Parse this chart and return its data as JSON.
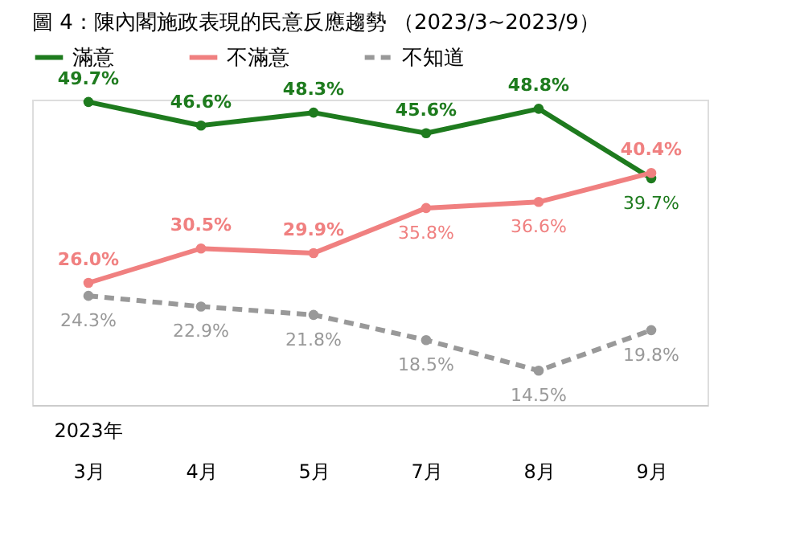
{
  "chart_data": {
    "type": "line",
    "title": "圖 4：陳內閣施政表現的民意反應趨勢 （2023/3~2023/9）",
    "categories": [
      "3月",
      "4月",
      "5月",
      "7月",
      "8月",
      "9月"
    ],
    "annotations": [
      "2023年"
    ],
    "series": [
      {
        "name": "滿意",
        "color": "#1e7b1e",
        "line_style": "solid",
        "values": [
          49.7,
          46.6,
          48.3,
          45.6,
          48.8,
          39.7
        ],
        "value_labels": [
          "49.7%",
          "46.6%",
          "48.3%",
          "45.6%",
          "48.8%",
          "39.7%"
        ]
      },
      {
        "name": "不滿意",
        "color": "#f08080",
        "line_style": "solid",
        "values": [
          26.0,
          30.5,
          29.9,
          35.8,
          36.6,
          40.4
        ],
        "value_labels": [
          "26.0%",
          "30.5%",
          "29.9%",
          "35.8%",
          "36.6%",
          "40.4%"
        ]
      },
      {
        "name": "不知道",
        "color": "#999999",
        "line_style": "dashed",
        "values": [
          24.3,
          22.9,
          21.8,
          18.5,
          14.5,
          19.8
        ],
        "value_labels": [
          "24.3%",
          "22.9%",
          "21.8%",
          "18.5%",
          "14.5%",
          "19.8%"
        ]
      }
    ],
    "marker": "circle",
    "legend": "top",
    "grid": false
  }
}
